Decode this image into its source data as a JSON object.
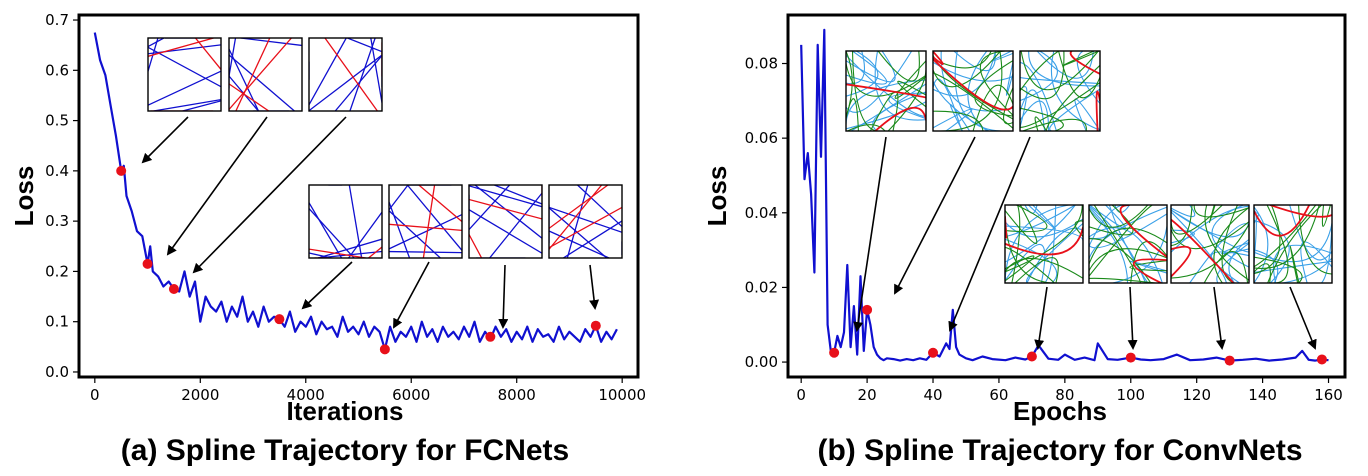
{
  "chart_data": [
    {
      "type": "line",
      "caption": "(a) Spline Trajectory for FCNets",
      "xlabel": "Iterations",
      "ylabel": "Loss",
      "xlim": [
        -300,
        10300
      ],
      "ylim": [
        -0.01,
        0.71
      ],
      "xticks": [
        "0",
        "2000",
        "4000",
        "6000",
        "8000",
        "10000"
      ],
      "yticks": [
        "0.0",
        "0.1",
        "0.2",
        "0.3",
        "0.4",
        "0.5",
        "0.6",
        "0.7"
      ],
      "xtick_values": [
        0,
        2000,
        4000,
        6000,
        8000,
        10000
      ],
      "ytick_values": [
        0.0,
        0.1,
        0.2,
        0.3,
        0.4,
        0.5,
        0.6,
        0.7
      ],
      "line_color": "#1010d0",
      "marker_color": "#e8101a",
      "series": [
        {
          "x": [
            0,
            100,
            200,
            300,
            400,
            500,
            550,
            600,
            700,
            800,
            900,
            1000,
            1050,
            1100,
            1200,
            1300,
            1400,
            1500,
            1600,
            1700,
            1800,
            1900,
            2000,
            2100,
            2200,
            2300,
            2400,
            2500,
            2600,
            2700,
            2800,
            2900,
            3000,
            3100,
            3200,
            3300,
            3400,
            3500,
            3600,
            3700,
            3800,
            3900,
            4000,
            4100,
            4200,
            4300,
            4400,
            4500,
            4600,
            4700,
            4800,
            4900,
            5000,
            5100,
            5200,
            5300,
            5400,
            5500,
            5600,
            5700,
            5800,
            5900,
            6000,
            6100,
            6200,
            6300,
            6400,
            6500,
            6600,
            6700,
            6800,
            6900,
            7000,
            7100,
            7200,
            7300,
            7400,
            7500,
            7600,
            7700,
            7800,
            7900,
            8000,
            8100,
            8200,
            8300,
            8400,
            8500,
            8600,
            8700,
            8800,
            8900,
            9000,
            9100,
            9200,
            9300,
            9400,
            9500,
            9600,
            9700,
            9800,
            9900
          ],
          "values": [
            0.675,
            0.62,
            0.59,
            0.53,
            0.47,
            0.4,
            0.41,
            0.35,
            0.32,
            0.28,
            0.27,
            0.215,
            0.25,
            0.2,
            0.19,
            0.17,
            0.18,
            0.165,
            0.16,
            0.2,
            0.15,
            0.18,
            0.1,
            0.15,
            0.13,
            0.12,
            0.14,
            0.1,
            0.13,
            0.11,
            0.15,
            0.1,
            0.12,
            0.09,
            0.13,
            0.1,
            0.11,
            0.105,
            0.09,
            0.12,
            0.08,
            0.1,
            0.09,
            0.11,
            0.075,
            0.1,
            0.085,
            0.09,
            0.07,
            0.11,
            0.08,
            0.09,
            0.075,
            0.1,
            0.07,
            0.09,
            0.08,
            0.045,
            0.09,
            0.06,
            0.08,
            0.07,
            0.09,
            0.06,
            0.1,
            0.07,
            0.085,
            0.06,
            0.09,
            0.07,
            0.08,
            0.065,
            0.09,
            0.07,
            0.1,
            0.06,
            0.08,
            0.065,
            0.09,
            0.07,
            0.085,
            0.06,
            0.08,
            0.065,
            0.09,
            0.06,
            0.085,
            0.07,
            0.075,
            0.06,
            0.09,
            0.065,
            0.08,
            0.07,
            0.06,
            0.085,
            0.07,
            0.092,
            0.06,
            0.08,
            0.065,
            0.085
          ]
        }
      ],
      "markers": [
        {
          "x": 500,
          "y": 0.4
        },
        {
          "x": 1000,
          "y": 0.215
        },
        {
          "x": 1500,
          "y": 0.165
        },
        {
          "x": 3500,
          "y": 0.105
        },
        {
          "x": 5500,
          "y": 0.045
        },
        {
          "x": 7500,
          "y": 0.07
        },
        {
          "x": 9500,
          "y": 0.092
        }
      ],
      "inset_style": {
        "colors": [
          "#1010d0",
          "#e8101a"
        ]
      }
    },
    {
      "type": "line",
      "caption": "(b) Spline Trajectory for ConvNets",
      "xlabel": "Epochs",
      "ylabel": "Loss",
      "xlim": [
        -4,
        165
      ],
      "ylim": [
        -0.004,
        0.093
      ],
      "xticks": [
        "0",
        "20",
        "40",
        "60",
        "80",
        "100",
        "120",
        "140",
        "160"
      ],
      "yticks": [
        "0.00",
        "0.02",
        "0.04",
        "0.06",
        "0.08"
      ],
      "xtick_values": [
        0,
        20,
        40,
        60,
        80,
        100,
        120,
        140,
        160
      ],
      "ytick_values": [
        0.0,
        0.02,
        0.04,
        0.06,
        0.08
      ],
      "line_color": "#1010d0",
      "marker_color": "#e8101a",
      "series": [
        {
          "x": [
            0,
            1,
            2,
            3,
            4,
            5,
            6,
            7,
            8,
            9,
            10,
            11,
            12,
            13,
            14,
            15,
            16,
            17,
            18,
            19,
            20,
            21,
            22,
            23,
            24,
            25,
            26,
            28,
            30,
            32,
            34,
            36,
            38,
            40,
            42,
            44,
            45,
            46,
            47,
            48,
            50,
            52,
            55,
            58,
            62,
            65,
            68,
            70,
            72,
            75,
            78,
            80,
            83,
            86,
            89,
            90,
            93,
            96,
            100,
            103,
            106,
            110,
            114,
            118,
            122,
            126,
            130,
            134,
            138,
            142,
            146,
            150,
            152,
            154,
            156,
            158,
            160
          ],
          "values": [
            0.085,
            0.049,
            0.056,
            0.045,
            0.024,
            0.085,
            0.055,
            0.089,
            0.01,
            0.003,
            0.0025,
            0.007,
            0.004,
            0.008,
            0.026,
            0.004,
            0.015,
            0.002,
            0.023,
            0.003,
            0.014,
            0.01,
            0.004,
            0.002,
            0.001,
            0.0005,
            0.001,
            0.0008,
            0.0004,
            0.0008,
            0.0005,
            0.001,
            0.0006,
            0.0025,
            0.0015,
            0.005,
            0.0035,
            0.014,
            0.004,
            0.002,
            0.001,
            0.0005,
            0.0015,
            0.0008,
            0.0005,
            0.0012,
            0.0007,
            0.0015,
            0.0045,
            0.0009,
            0.0006,
            0.002,
            0.0006,
            0.0012,
            0.0005,
            0.005,
            0.0008,
            0.0006,
            0.0012,
            0.0007,
            0.0005,
            0.0008,
            0.002,
            0.0005,
            0.0007,
            0.0012,
            0.0004,
            0.0006,
            0.0009,
            0.0004,
            0.0007,
            0.0012,
            0.003,
            0.0006,
            0.0004,
            0.0007,
            0.0005
          ]
        }
      ],
      "markers": [
        {
          "x": 10,
          "y": 0.0025
        },
        {
          "x": 20,
          "y": 0.014
        },
        {
          "x": 40,
          "y": 0.0025
        },
        {
          "x": 70,
          "y": 0.0015
        },
        {
          "x": 100,
          "y": 0.0012
        },
        {
          "x": 130,
          "y": 0.0004
        },
        {
          "x": 158,
          "y": 0.0007
        }
      ],
      "inset_style": {
        "colors": [
          "#3aa0e8",
          "#1a8a1a",
          "#e8101a"
        ]
      }
    }
  ]
}
